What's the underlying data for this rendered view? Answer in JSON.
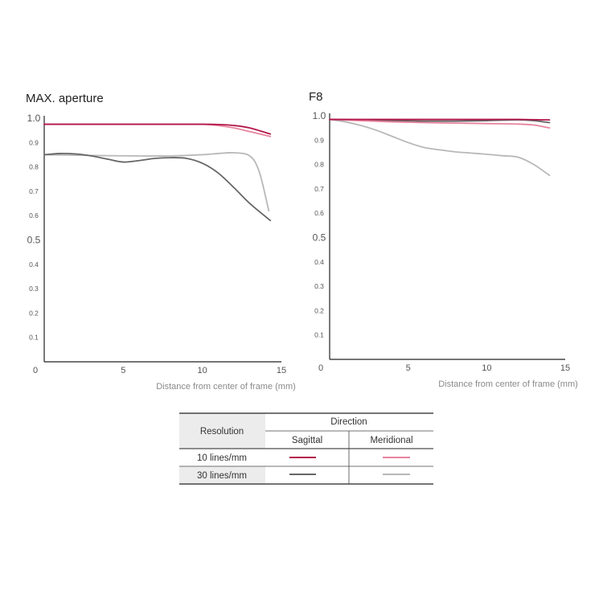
{
  "chart_data": [
    {
      "type": "line",
      "title": "MAX. aperture",
      "xlabel": "Distance from center of frame (mm)",
      "ylabel": "",
      "xlim": [
        0,
        15
      ],
      "ylim": [
        0,
        1.0
      ],
      "x_ticks": [
        "0",
        "5",
        "10",
        "15"
      ],
      "y_ticks": [
        "0.1",
        "0.2",
        "0.3",
        "0.4",
        "0.5",
        "0.6",
        "0.7",
        "0.8",
        "0.9",
        "1.0"
      ],
      "series": [
        {
          "key": "s10",
          "x": [
            0,
            2,
            4,
            6,
            8,
            10,
            11,
            12,
            13,
            14.3
          ],
          "y": [
            0.975,
            0.975,
            0.975,
            0.975,
            0.975,
            0.975,
            0.974,
            0.97,
            0.96,
            0.935
          ]
        },
        {
          "key": "m10",
          "x": [
            0,
            2,
            4,
            6,
            8,
            10,
            11,
            12,
            13,
            14.3
          ],
          "y": [
            0.975,
            0.975,
            0.975,
            0.975,
            0.975,
            0.975,
            0.97,
            0.96,
            0.945,
            0.925
          ]
        },
        {
          "key": "s30",
          "x": [
            0,
            1,
            2,
            3,
            4,
            5,
            6,
            7,
            8,
            9,
            10,
            11,
            12,
            13,
            14.3
          ],
          "y": [
            0.85,
            0.855,
            0.853,
            0.845,
            0.832,
            0.82,
            0.826,
            0.835,
            0.838,
            0.835,
            0.815,
            0.775,
            0.715,
            0.65,
            0.58
          ]
        },
        {
          "key": "m30",
          "x": [
            0,
            2,
            4,
            6,
            8,
            10,
            11,
            12,
            13,
            13.6,
            14.2
          ],
          "y": [
            0.85,
            0.848,
            0.846,
            0.845,
            0.845,
            0.85,
            0.855,
            0.858,
            0.845,
            0.78,
            0.62
          ]
        }
      ]
    },
    {
      "type": "line",
      "title": "F8",
      "xlabel": "Distance from center of frame (mm)",
      "ylabel": "",
      "xlim": [
        0,
        15
      ],
      "ylim": [
        0,
        1.0
      ],
      "x_ticks": [
        "0",
        "5",
        "10",
        "15"
      ],
      "y_ticks": [
        "0.1",
        "0.2",
        "0.3",
        "0.4",
        "0.5",
        "0.6",
        "0.7",
        "0.8",
        "0.9",
        "1.0"
      ],
      "series": [
        {
          "key": "s10",
          "x": [
            0,
            2,
            4,
            6,
            8,
            10,
            12,
            14
          ],
          "y": [
            0.985,
            0.985,
            0.985,
            0.985,
            0.985,
            0.985,
            0.985,
            0.983
          ]
        },
        {
          "key": "m10",
          "x": [
            0,
            2,
            4,
            6,
            8,
            10,
            12,
            13,
            14
          ],
          "y": [
            0.985,
            0.98,
            0.975,
            0.972,
            0.97,
            0.968,
            0.966,
            0.962,
            0.95
          ]
        },
        {
          "key": "s30",
          "x": [
            0,
            2,
            4,
            6,
            8,
            10,
            12,
            13,
            14
          ],
          "y": [
            0.985,
            0.983,
            0.98,
            0.978,
            0.978,
            0.98,
            0.983,
            0.98,
            0.972
          ]
        },
        {
          "key": "m30",
          "x": [
            0,
            1,
            2,
            3,
            4,
            5,
            6,
            7,
            8,
            9,
            10,
            11,
            12,
            13,
            14
          ],
          "y": [
            0.985,
            0.975,
            0.96,
            0.94,
            0.915,
            0.89,
            0.87,
            0.86,
            0.852,
            0.847,
            0.842,
            0.836,
            0.83,
            0.8,
            0.755
          ]
        }
      ]
    }
  ],
  "colors": {
    "s10": "#b3174a",
    "m10": "#e8849f",
    "s30": "#666666",
    "m30": "#b8b8b8"
  },
  "legend": {
    "resolution_label": "Resolution",
    "direction_label": "Direction",
    "sagittal_label": "Sagittal",
    "meridional_label": "Meridional",
    "rows": [
      {
        "label": "10 lines/mm",
        "sagittal": "s10",
        "meridional": "m10"
      },
      {
        "label": "30 lines/mm",
        "sagittal": "s30",
        "meridional": "m30"
      }
    ]
  }
}
